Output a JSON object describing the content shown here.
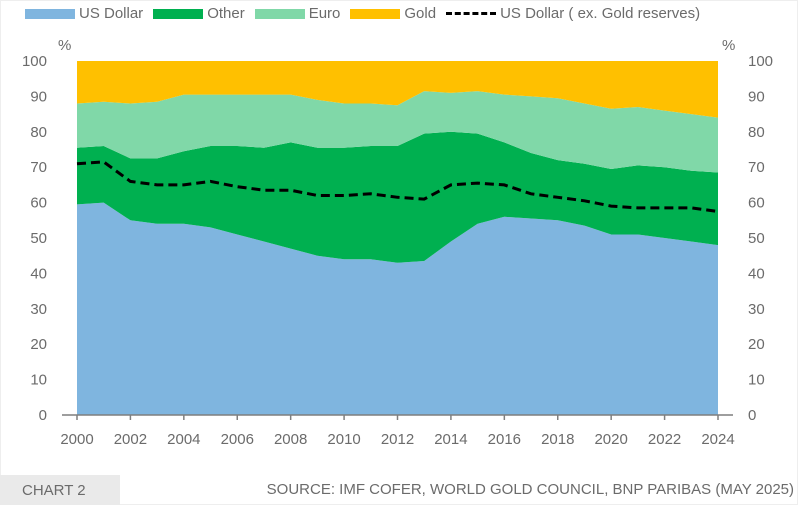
{
  "chart_data": {
    "type": "area",
    "stacked": true,
    "title": "",
    "xlabel": "",
    "ylabel_left": "%",
    "ylabel_right": "%",
    "ylim": [
      0,
      100
    ],
    "yticks": [
      0,
      10,
      20,
      30,
      40,
      50,
      60,
      70,
      80,
      90,
      100
    ],
    "xticks": [
      2000,
      2002,
      2004,
      2006,
      2008,
      2010,
      2012,
      2014,
      2016,
      2018,
      2020,
      2022,
      2024
    ],
    "xlim": [
      2000,
      2024
    ],
    "x": [
      2000,
      2001,
      2002,
      2003,
      2004,
      2005,
      2006,
      2007,
      2008,
      2009,
      2010,
      2011,
      2012,
      2013,
      2014,
      2015,
      2016,
      2017,
      2018,
      2019,
      2020,
      2021,
      2022,
      2023,
      2024
    ],
    "series": [
      {
        "name": "US Dollar",
        "color": "#7fb5df",
        "cumulative_top": [
          59.5,
          60,
          55,
          54,
          54,
          53,
          51,
          49,
          47,
          45,
          44,
          44,
          43,
          43.5,
          49,
          54,
          56,
          55.5,
          55,
          53.5,
          51,
          51,
          50,
          49,
          48
        ]
      },
      {
        "name": "Other",
        "color": "#00b050",
        "cumulative_top": [
          75.5,
          76,
          72.5,
          72.5,
          74.5,
          76,
          76,
          75.5,
          77,
          75.5,
          75.5,
          76,
          76,
          79.5,
          80,
          79.5,
          77,
          74,
          72,
          71,
          69.5,
          70.5,
          70,
          69,
          68.5
        ]
      },
      {
        "name": "Euro",
        "color": "#80d8a8",
        "cumulative_top": [
          88,
          88.5,
          88,
          88.5,
          90.5,
          90.5,
          90.5,
          90.5,
          90.5,
          89,
          88,
          88,
          87.5,
          91.5,
          91,
          91.5,
          90.5,
          90,
          89.5,
          88,
          86.5,
          87,
          86,
          85,
          84
        ]
      },
      {
        "name": "Gold",
        "color": "#ffc000",
        "cumulative_top": [
          100,
          100,
          100,
          100,
          100,
          100,
          100,
          100,
          100,
          100,
          100,
          100,
          100,
          100,
          100,
          100,
          100,
          100,
          100,
          100,
          100,
          100,
          100,
          100,
          100
        ]
      }
    ],
    "lines": [
      {
        "name": "US Dollar ( ex. Gold reserves)",
        "color": "#000000",
        "style": "dashed",
        "values": [
          71,
          71.5,
          66,
          65,
          65,
          66,
          64.5,
          63.5,
          63.5,
          62,
          62,
          62.5,
          61.5,
          61,
          65,
          65.5,
          65,
          62.5,
          61.5,
          60.5,
          59,
          58.5,
          58.5,
          58.5,
          57.5
        ]
      }
    ],
    "legend": {
      "placement": "top",
      "entries": [
        "US Dollar",
        "Other",
        "Euro",
        "Gold",
        "US Dollar ( ex. Gold reserves)"
      ]
    },
    "grid": false
  },
  "footer": {
    "tag": "CHART 2",
    "source": "SOURCE: IMF COFER, WORLD GOLD COUNCIL, BNP PARIBAS (MAY 2025)"
  }
}
